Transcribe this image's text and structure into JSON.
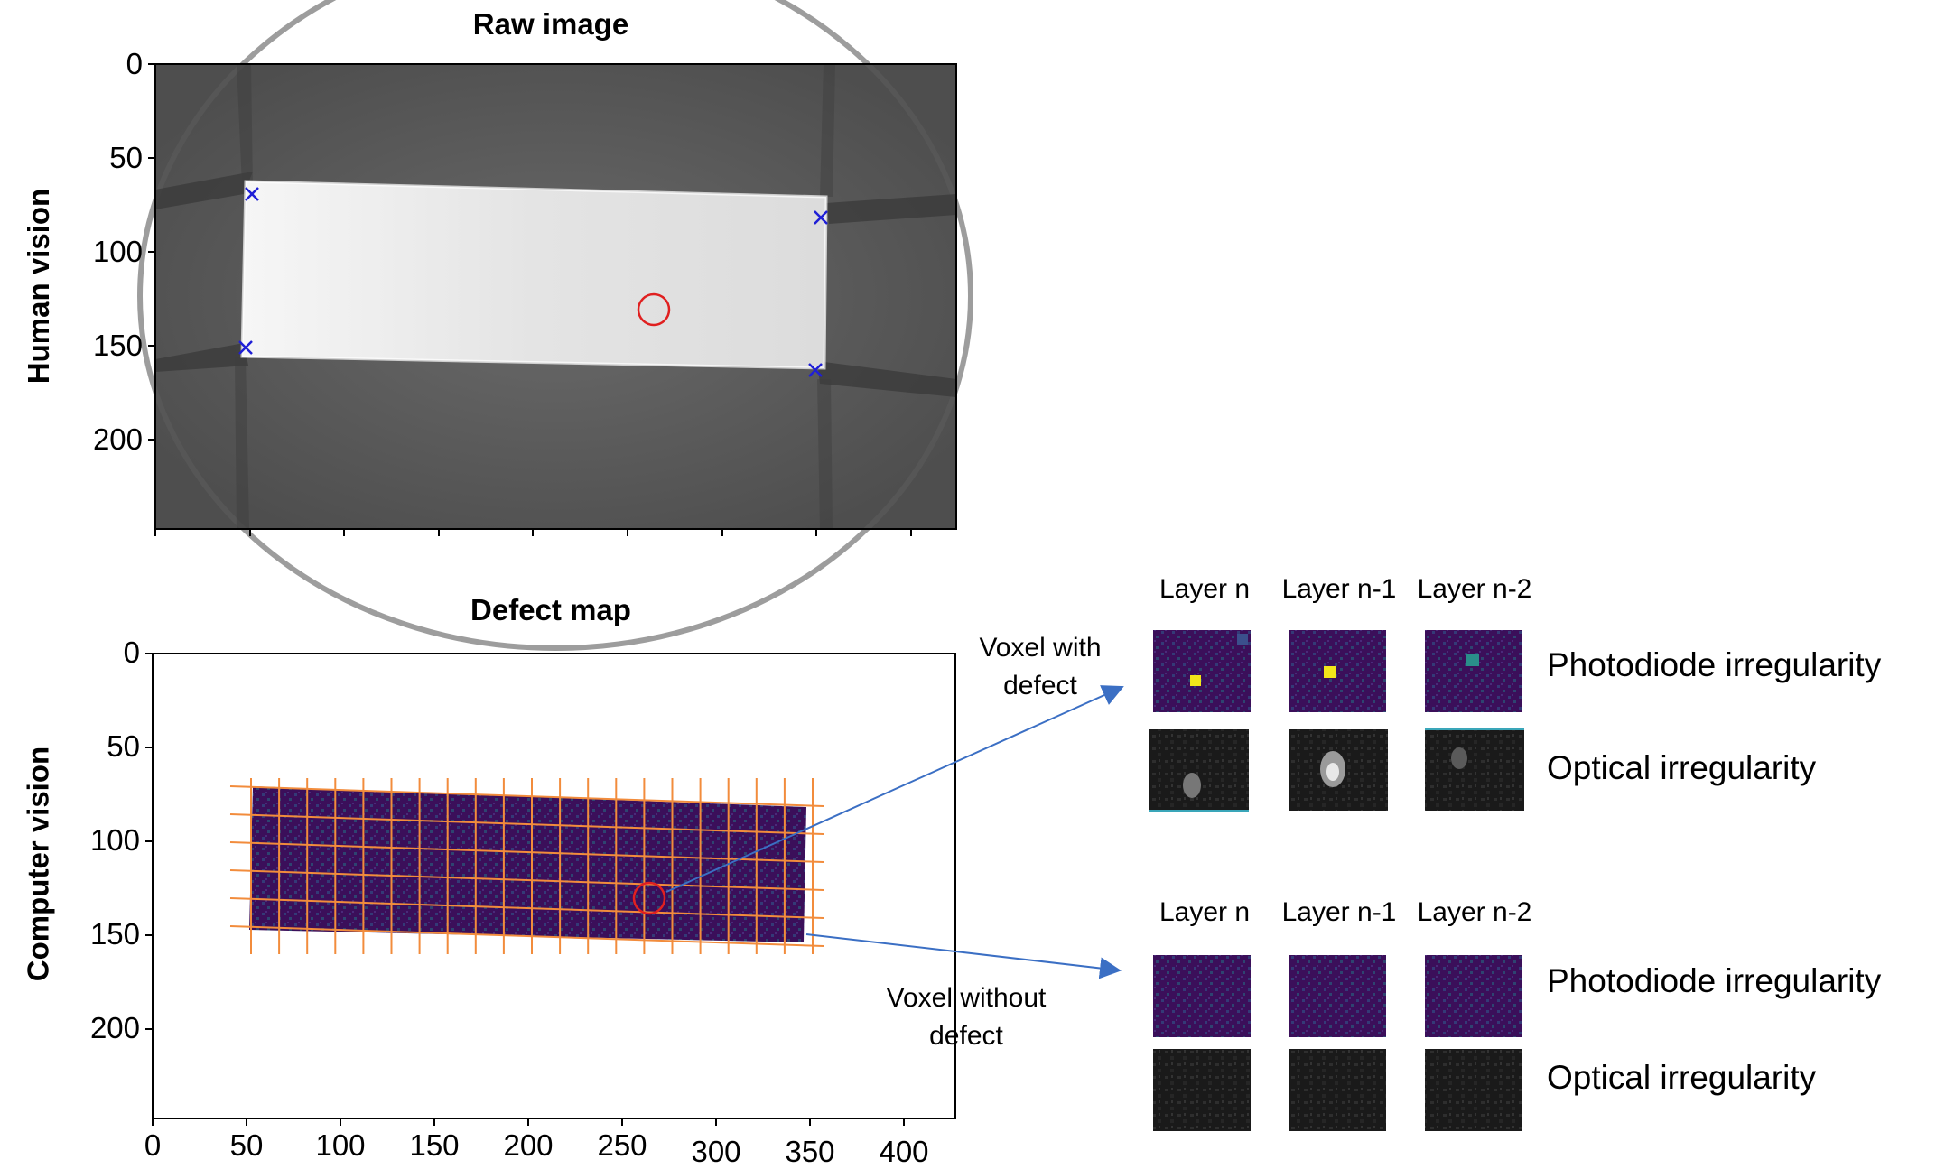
{
  "top_panel": {
    "title": "Raw image",
    "side_label": "Human vision",
    "y_ticks": [
      "0",
      "50",
      "100",
      "150",
      "200"
    ]
  },
  "bottom_panel": {
    "title": "Defect map",
    "side_label": "Computer vision",
    "y_ticks": [
      "0",
      "50",
      "100",
      "150",
      "200"
    ],
    "x_ticks": [
      "0",
      "50",
      "100",
      "150",
      "200",
      "250",
      "300",
      "350",
      "400"
    ]
  },
  "annotations": {
    "with_defect": "Voxel with defect",
    "with_defect_line1": "Voxel with",
    "with_defect_line2": "defect",
    "without_defect_line1": "Voxel without",
    "without_defect_line2": "defect"
  },
  "layers": [
    "Layer n",
    "Layer n-1",
    "Layer n-2"
  ],
  "row_labels": {
    "photodiode": "Photodiode irregularity",
    "optical": "Optical irregularity"
  },
  "colors": {
    "grid": "#f28c3c",
    "marker": "#1f1fd6",
    "circle": "#e02020",
    "arrow": "#3b6fc4",
    "viridis_dark": "#440a5c",
    "viridis_yellow": "#f2e51a",
    "viridis_teal": "#2a8e8a"
  },
  "icons": [
    "x-marker",
    "red-circle",
    "arrow"
  ]
}
